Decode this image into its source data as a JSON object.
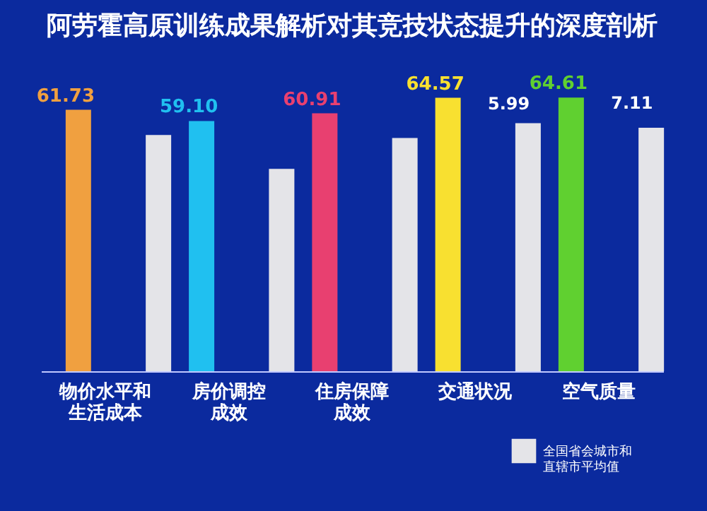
{
  "chart_data": {
    "type": "bar",
    "title": "阿劳霍高原训练成果解析对其竞技状态提升的深度剖析",
    "categories": [
      "物价水平和生活成本",
      "房价调控成效",
      "住房保障成效",
      "交通状况",
      "空气质量"
    ],
    "series": [
      {
        "colors": [
          "#f0a040",
          "#20c0f0",
          "#e84070",
          "#f8e030",
          "#60d030"
        ],
        "values": [
          61.73,
          59.1,
          60.91,
          64.57,
          64.61
        ],
        "value_labels": [
          "61.73",
          "59.10",
          "60.91",
          "64.57",
          "64.61"
        ]
      },
      {
        "name": "全国省会城市和直辖市平均值",
        "color": "#e4e4e8",
        "values": [
          55.8,
          47.8,
          55.1,
          58.58,
          57.5
        ]
      }
    ],
    "annotations": [
      "5.99",
      "7.11"
    ],
    "legend": "bottom right"
  }
}
